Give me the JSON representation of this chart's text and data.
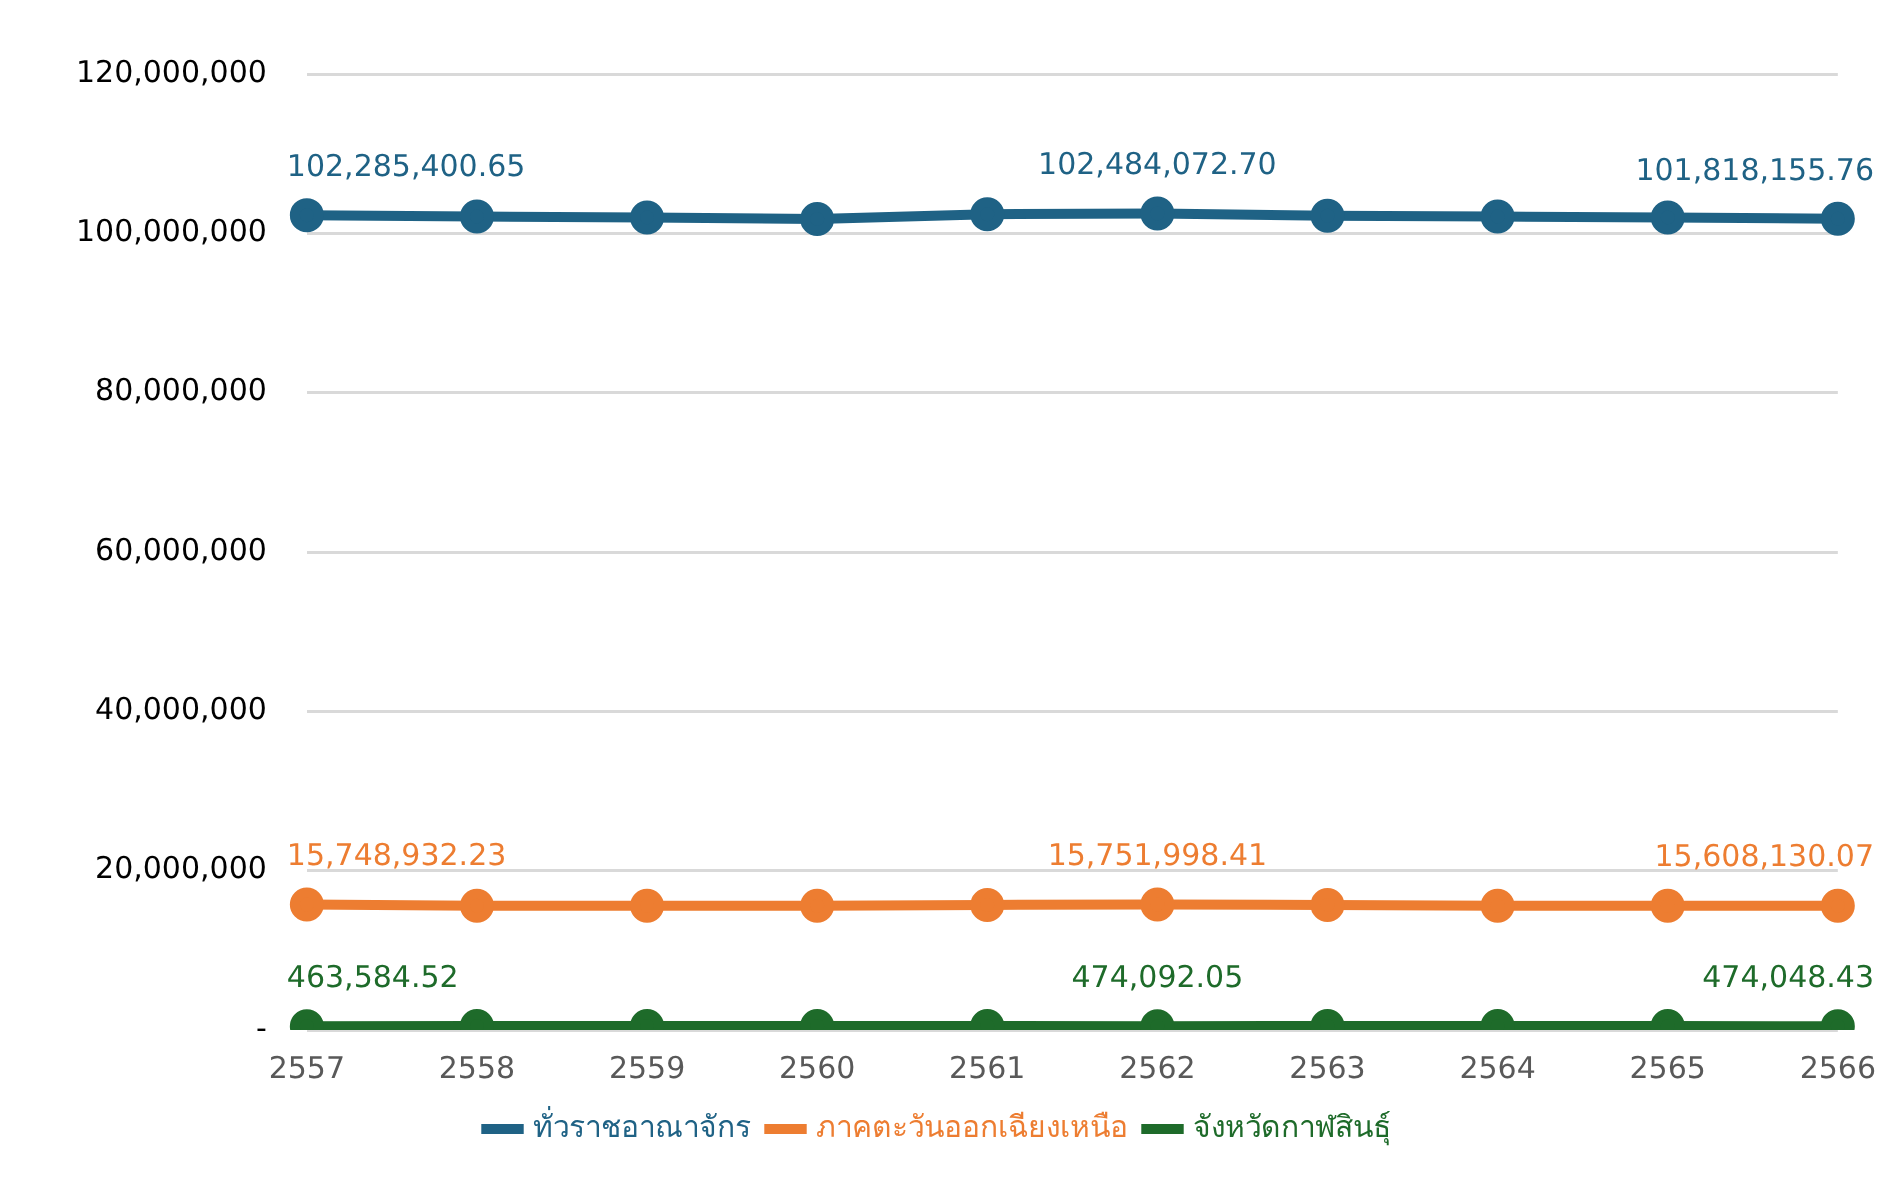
{
  "chart_data": {
    "type": "line",
    "categories": [
      "2557",
      "2558",
      "2559",
      "2560",
      "2561",
      "2562",
      "2563",
      "2564",
      "2565",
      "2566"
    ],
    "series": [
      {
        "name": "ทั่วราชอาณาจักร",
        "color": "#1f6285",
        "values": [
          102285400.65,
          102100000,
          102000000,
          101800000,
          102400000,
          102484072.7,
          102200000,
          102100000,
          102000000,
          101818155.76
        ],
        "value_labels": [
          "102,285,400.65",
          null,
          null,
          null,
          null,
          "102,484,072.70",
          null,
          null,
          null,
          "101,818,155.76"
        ]
      },
      {
        "name": "ภาคตะวันออกเฉียงเหนือ",
        "color": "#ed7d31",
        "values": [
          15748932.23,
          15600000,
          15600000,
          15600000,
          15700000,
          15751998.41,
          15700000,
          15600000,
          15600000,
          15608130.07
        ],
        "value_labels": [
          "15,748,932.23",
          null,
          null,
          null,
          null,
          "15,751,998.41",
          null,
          null,
          null,
          "15,608,130.07"
        ]
      },
      {
        "name": "จังหวัดกาฬสินธุ์",
        "color": "#1e6b2a",
        "values": [
          463584.52,
          500000,
          500000,
          500000,
          500000,
          474092.05,
          500000,
          500000,
          500000,
          474048.43
        ],
        "value_labels": [
          "463,584.52",
          null,
          null,
          null,
          null,
          "474,092.05",
          null,
          null,
          null,
          "474,048.43"
        ]
      }
    ],
    "ylim": [
      0,
      120000000
    ],
    "yticks": [
      {
        "value": 0,
        "label": "-"
      },
      {
        "value": 20000000,
        "label": "20,000,000"
      },
      {
        "value": 40000000,
        "label": "40,000,000"
      },
      {
        "value": 60000000,
        "label": "60,000,000"
      },
      {
        "value": 80000000,
        "label": "80,000,000"
      },
      {
        "value": 100000000,
        "label": "100,000,000"
      },
      {
        "value": 120000000,
        "label": "120,000,000"
      }
    ],
    "grid": "y",
    "legend": "bottom",
    "marker": "circle",
    "line_style": "solid"
  }
}
